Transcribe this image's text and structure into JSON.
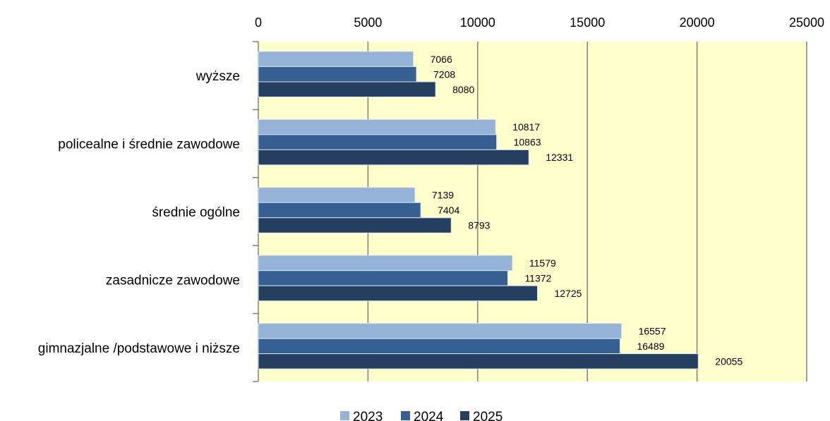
{
  "chart_data": {
    "type": "bar",
    "orientation": "horizontal",
    "categories": [
      "wyższe",
      "policealne i średnie zawodowe",
      "średnie ogólne",
      "zasadnicze zawodowe",
      "gimnazjalne /podstawowe i niższe"
    ],
    "series": [
      {
        "name": "2023",
        "color": "#95b3d7",
        "values": [
          7066,
          10817,
          7139,
          11579,
          16557
        ]
      },
      {
        "name": "2024",
        "color": "#366092",
        "values": [
          7208,
          10863,
          7404,
          11372,
          16489
        ]
      },
      {
        "name": "2025",
        "color": "#243f60",
        "values": [
          8080,
          12331,
          8793,
          12725,
          20055
        ]
      }
    ],
    "x_ticks": [
      0,
      5000,
      10000,
      15000,
      20000,
      25000
    ],
    "xlim": [
      0,
      25000
    ],
    "x_axis_position": "top",
    "grid": true,
    "plot_background": "#ffffcc",
    "gridline_color": "#808080",
    "legend_position": "bottom",
    "title": "",
    "xlabel": "",
    "ylabel": ""
  }
}
